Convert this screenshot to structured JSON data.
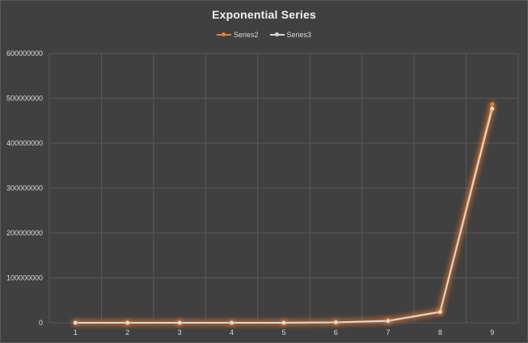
{
  "chart_data": {
    "type": "line",
    "title": "Exponential Series",
    "xlabel": "",
    "ylabel": "",
    "categories": [
      "1",
      "2",
      "3",
      "4",
      "5",
      "6",
      "7",
      "8",
      "9"
    ],
    "ylim": [
      0,
      600000000
    ],
    "yticks": [
      "0",
      "100000000",
      "200000000",
      "300000000",
      "400000000",
      "500000000",
      "600000000"
    ],
    "ytick_values": [
      0,
      100000000,
      200000000,
      300000000,
      400000000,
      500000000,
      600000000
    ],
    "grid": true,
    "legend_position": "top",
    "series": [
      {
        "name": "Series2",
        "color": "#ed7d31",
        "values": [
          10,
          100,
          1000,
          10000,
          100000,
          1000000,
          5000000,
          25000000,
          487000000
        ]
      },
      {
        "name": "Series3",
        "color": "#d9d9d9",
        "values": [
          10,
          100,
          1000,
          10000,
          100000,
          1000000,
          4000000,
          24000000,
          477000000
        ]
      }
    ]
  },
  "colors": {
    "background": "#404040",
    "grid": "#595959",
    "text": "#d9d9d9"
  }
}
